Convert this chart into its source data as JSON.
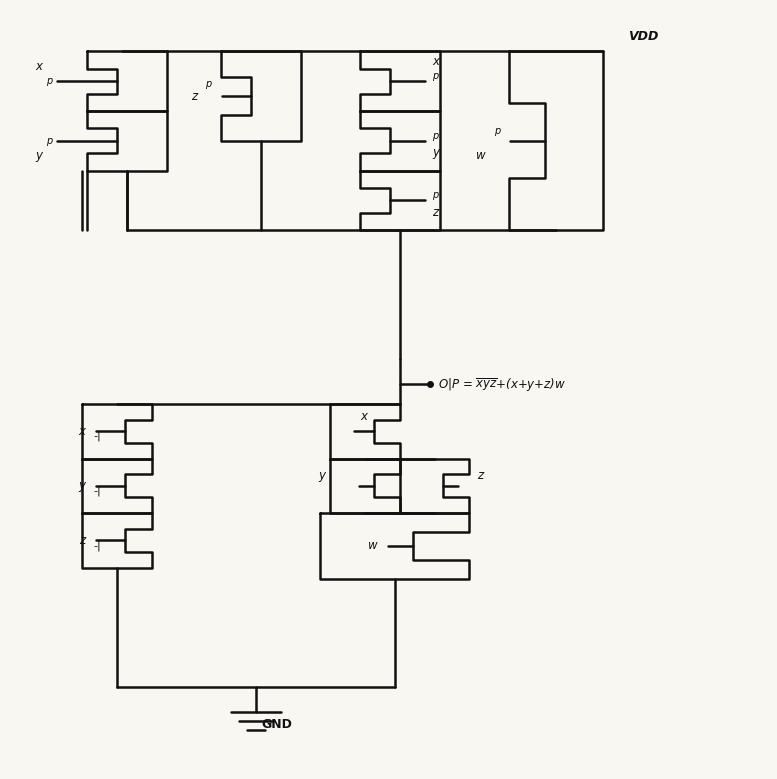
{
  "background_color": "#f8f7f2",
  "line_color": "#111111",
  "line_width": 1.8,
  "text_color": "#111111",
  "vdd_label": "VDD",
  "gnd_label": "GND",
  "output_label": "O|P = xyz+(x+y+z)w"
}
